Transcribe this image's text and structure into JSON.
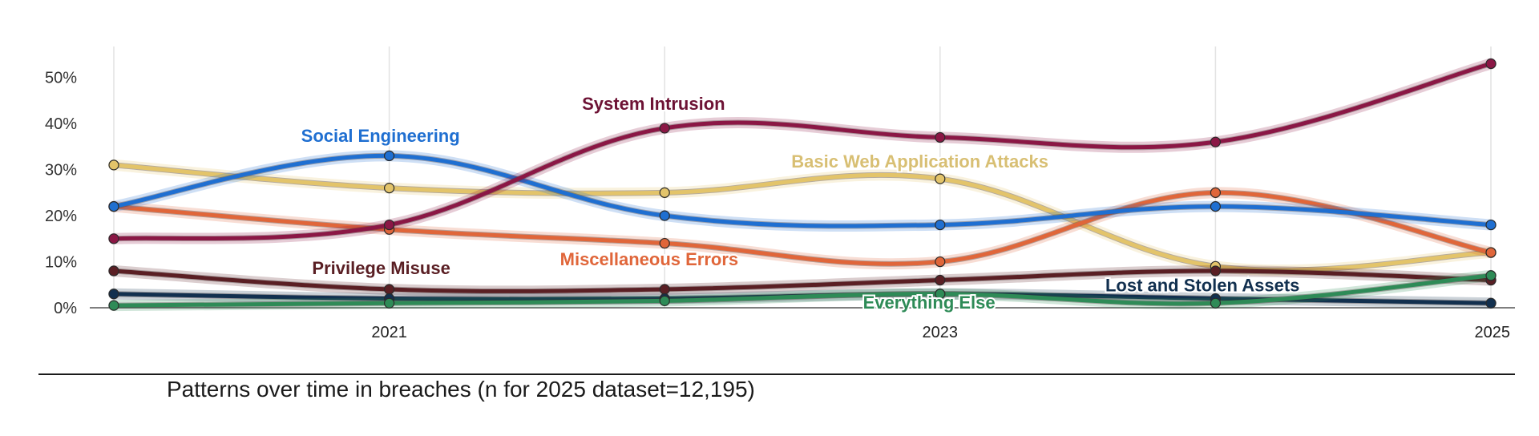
{
  "chart_data": {
    "type": "line",
    "title": "",
    "caption": "Patterns over time in breaches (n for 2025 dataset=12,195)",
    "xlabel": "",
    "ylabel": "",
    "x": [
      2020,
      2021,
      2022,
      2023,
      2024,
      2025
    ],
    "x_ticks": [
      {
        "value": 2021,
        "label": "2021"
      },
      {
        "value": 2023,
        "label": "2023"
      },
      {
        "value": 2025,
        "label": "2025"
      }
    ],
    "ylim": [
      0,
      55
    ],
    "y_ticks": [
      {
        "value": 0,
        "label": "0%"
      },
      {
        "value": 10,
        "label": "10%"
      },
      {
        "value": 20,
        "label": "20%"
      },
      {
        "value": 30,
        "label": "30%"
      },
      {
        "value": 40,
        "label": "40%"
      },
      {
        "value": 50,
        "label": "50%"
      }
    ],
    "grid": "vertical",
    "series": [
      {
        "name": "Basic Web Application Attacks",
        "color": "#e3c46a",
        "values": [
          31,
          26,
          25,
          28,
          9,
          12
        ]
      },
      {
        "name": "Miscellaneous Errors",
        "color": "#e0663a",
        "values": [
          22,
          17,
          14,
          10,
          25,
          12
        ]
      },
      {
        "name": "Social Engineering",
        "color": "#1f6fd1",
        "values": [
          22,
          33,
          20,
          18,
          22,
          18
        ]
      },
      {
        "name": "System Intrusion",
        "color": "#8b1745",
        "values": [
          15,
          18,
          39,
          37,
          36,
          53
        ]
      },
      {
        "name": "Privilege Misuse",
        "color": "#5a1f24",
        "values": [
          8,
          4,
          4,
          6,
          8,
          6
        ]
      },
      {
        "name": "Lost and Stolen Assets",
        "color": "#12304f",
        "values": [
          3,
          2,
          2,
          3,
          2,
          1
        ]
      },
      {
        "name": "Everything Else",
        "color": "#2e8b57",
        "values": [
          0.5,
          1,
          1.5,
          3,
          1,
          7
        ]
      }
    ],
    "labels": [
      {
        "series": "System Intrusion",
        "text": "System Intrusion",
        "color": "#6d1234",
        "x": 2021.7,
        "y": 43
      },
      {
        "series": "Social Engineering",
        "text": "Social Engineering",
        "color": "#1f6fd1",
        "x": 2020.68,
        "y": 36
      },
      {
        "series": "Basic Web Application Attacks",
        "text": "Basic Web Application Attacks",
        "color": "#d8bf73",
        "x": 2022.46,
        "y": 30.5
      },
      {
        "series": "Privilege Misuse",
        "text": "Privilege Misuse",
        "color": "#5a1f24",
        "x": 2020.72,
        "y": 7.3
      },
      {
        "series": "Miscellaneous Errors",
        "text": "Miscellaneous Errors",
        "color": "#e0663a",
        "x": 2021.62,
        "y": 9.2
      },
      {
        "series": "Lost and Stolen Assets",
        "text": "Lost and Stolen Assets",
        "color": "#12304f",
        "x": 2023.6,
        "y": 3.6
      },
      {
        "series": "Everything Else",
        "text": "Everything Else",
        "color": "#2e8b57",
        "x": 2022.72,
        "y": -0.2
      }
    ]
  }
}
